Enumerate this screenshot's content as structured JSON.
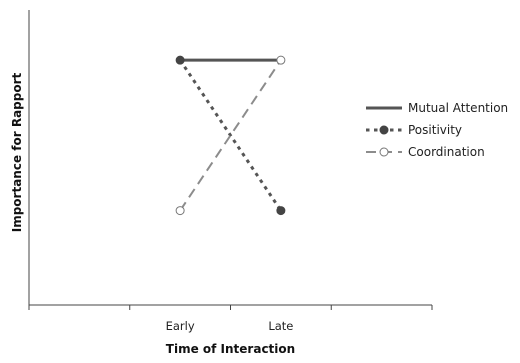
{
  "chart_data": {
    "type": "line",
    "title": "",
    "xlabel": "Time of Interaction",
    "ylabel": "Importance for Rapport",
    "categories": [
      "Early",
      "Late"
    ],
    "ylim": [
      0,
      10
    ],
    "grid": false,
    "legend_position": "right",
    "series": [
      {
        "name": "Mutual Attention",
        "values": [
          8.3,
          8.3
        ],
        "style": "solid",
        "marker": "none",
        "color": "#555555"
      },
      {
        "name": "Positivity",
        "values": [
          8.3,
          3.2
        ],
        "style": "dotted",
        "marker": "filled-circle",
        "color": "#555555"
      },
      {
        "name": "Coordination",
        "values": [
          3.2,
          8.3
        ],
        "style": "dashed",
        "marker": "open-circle",
        "color": "#8c8c8c"
      }
    ]
  }
}
